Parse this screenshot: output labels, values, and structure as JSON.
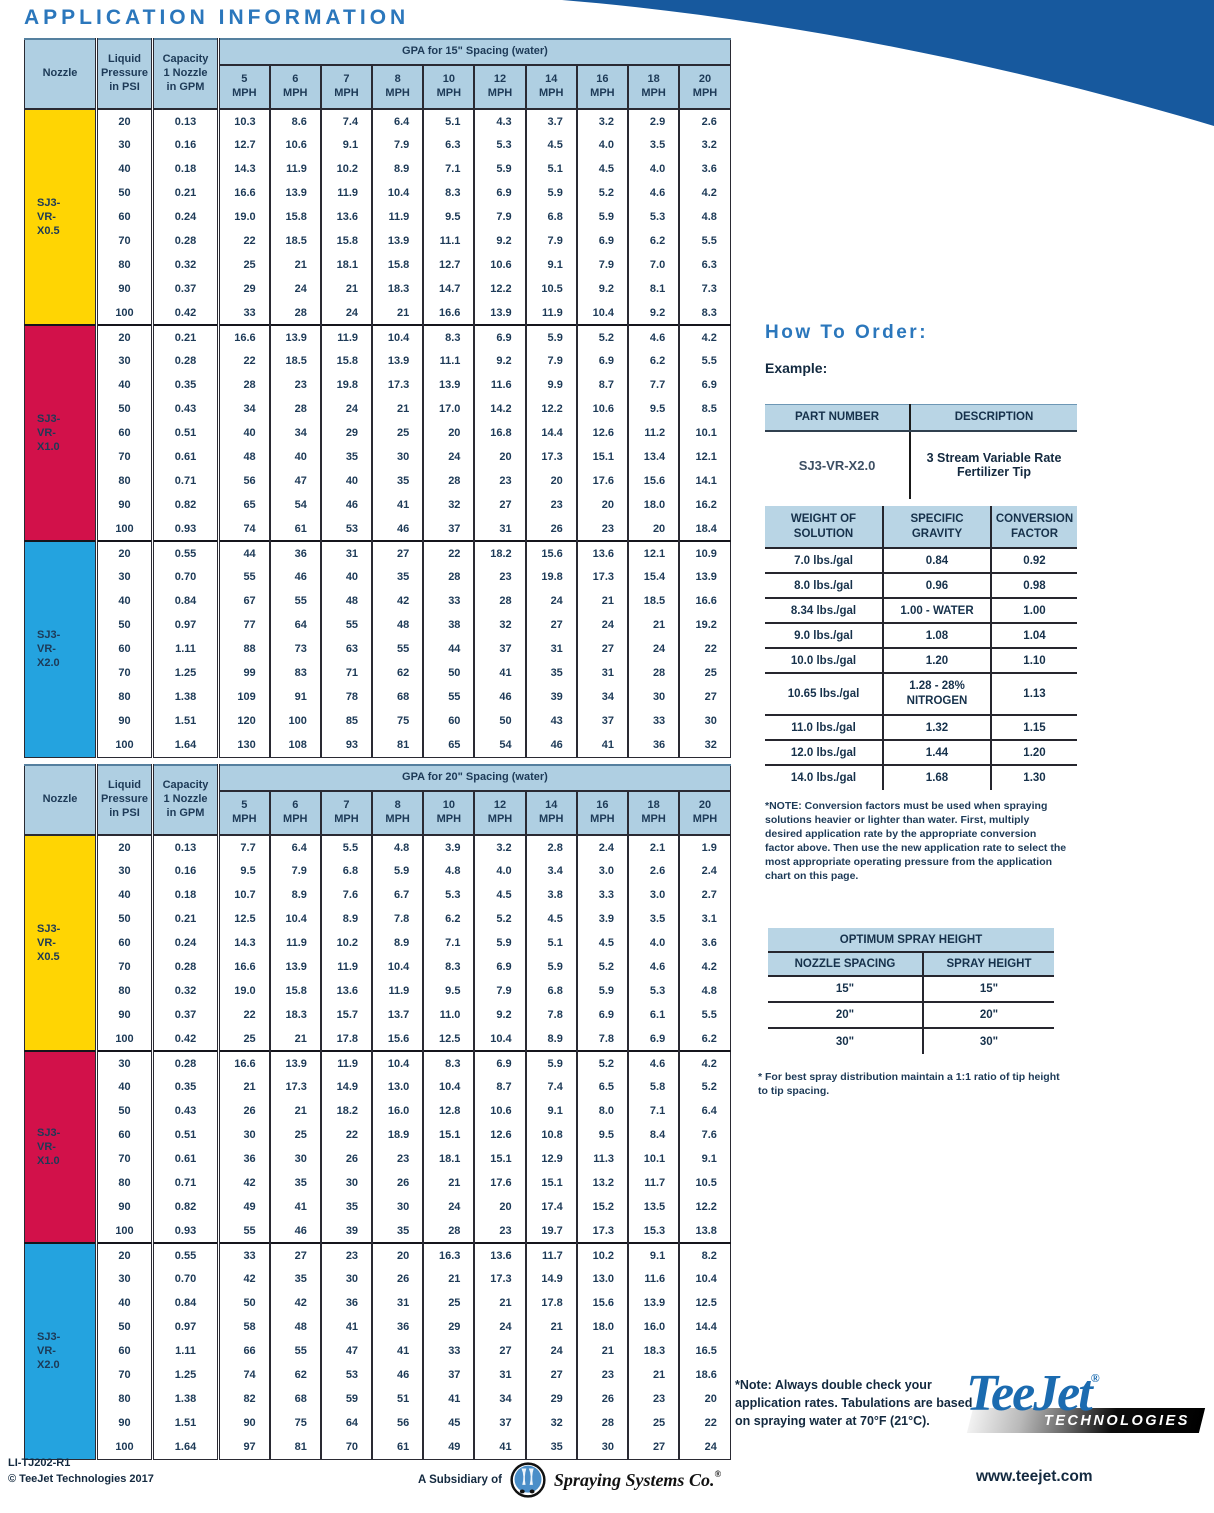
{
  "page": {
    "title": "APPLICATION INFORMATION"
  },
  "application_tables": [
    {
      "id": "15",
      "spacing_header": "GPA for 15\" Spacing (water)",
      "nozzle_header": "Nozzle",
      "pressure_header_lines": [
        "Liquid",
        "Pressure",
        "in PSI"
      ],
      "capacity_header_lines": [
        "Capacity",
        "1 Nozzle",
        "in GPM"
      ],
      "mph_values": [
        "5",
        "6",
        "7",
        "8",
        "10",
        "12",
        "14",
        "16",
        "18",
        "20"
      ],
      "mph_label": "MPH",
      "sections": [
        {
          "label_lines": [
            "SJ3-",
            "VR-",
            "X0.5"
          ],
          "color": "#FFD503",
          "rows": [
            [
              "20",
              "0.13",
              "10.3",
              "8.6",
              "7.4",
              "6.4",
              "5.1",
              "4.3",
              "3.7",
              "3.2",
              "2.9",
              "2.6"
            ],
            [
              "30",
              "0.16",
              "12.7",
              "10.6",
              "9.1",
              "7.9",
              "6.3",
              "5.3",
              "4.5",
              "4.0",
              "3.5",
              "3.2"
            ],
            [
              "40",
              "0.18",
              "14.3",
              "11.9",
              "10.2",
              "8.9",
              "7.1",
              "5.9",
              "5.1",
              "4.5",
              "4.0",
              "3.6"
            ],
            [
              "50",
              "0.21",
              "16.6",
              "13.9",
              "11.9",
              "10.4",
              "8.3",
              "6.9",
              "5.9",
              "5.2",
              "4.6",
              "4.2"
            ],
            [
              "60",
              "0.24",
              "19.0",
              "15.8",
              "13.6",
              "11.9",
              "9.5",
              "7.9",
              "6.8",
              "5.9",
              "5.3",
              "4.8"
            ],
            [
              "70",
              "0.28",
              "22",
              "18.5",
              "15.8",
              "13.9",
              "11.1",
              "9.2",
              "7.9",
              "6.9",
              "6.2",
              "5.5"
            ],
            [
              "80",
              "0.32",
              "25",
              "21",
              "18.1",
              "15.8",
              "12.7",
              "10.6",
              "9.1",
              "7.9",
              "7.0",
              "6.3"
            ],
            [
              "90",
              "0.37",
              "29",
              "24",
              "21",
              "18.3",
              "14.7",
              "12.2",
              "10.5",
              "9.2",
              "8.1",
              "7.3"
            ],
            [
              "100",
              "0.42",
              "33",
              "28",
              "24",
              "21",
              "16.6",
              "13.9",
              "11.9",
              "10.4",
              "9.2",
              "8.3"
            ]
          ]
        },
        {
          "label_lines": [
            "SJ3-",
            "VR-",
            "X1.0"
          ],
          "color": "#D2114A",
          "rows": [
            [
              "20",
              "0.21",
              "16.6",
              "13.9",
              "11.9",
              "10.4",
              "8.3",
              "6.9",
              "5.9",
              "5.2",
              "4.6",
              "4.2"
            ],
            [
              "30",
              "0.28",
              "22",
              "18.5",
              "15.8",
              "13.9",
              "11.1",
              "9.2",
              "7.9",
              "6.9",
              "6.2",
              "5.5"
            ],
            [
              "40",
              "0.35",
              "28",
              "23",
              "19.8",
              "17.3",
              "13.9",
              "11.6",
              "9.9",
              "8.7",
              "7.7",
              "6.9"
            ],
            [
              "50",
              "0.43",
              "34",
              "28",
              "24",
              "21",
              "17.0",
              "14.2",
              "12.2",
              "10.6",
              "9.5",
              "8.5"
            ],
            [
              "60",
              "0.51",
              "40",
              "34",
              "29",
              "25",
              "20",
              "16.8",
              "14.4",
              "12.6",
              "11.2",
              "10.1"
            ],
            [
              "70",
              "0.61",
              "48",
              "40",
              "35",
              "30",
              "24",
              "20",
              "17.3",
              "15.1",
              "13.4",
              "12.1"
            ],
            [
              "80",
              "0.71",
              "56",
              "47",
              "40",
              "35",
              "28",
              "23",
              "20",
              "17.6",
              "15.6",
              "14.1"
            ],
            [
              "90",
              "0.82",
              "65",
              "54",
              "46",
              "41",
              "32",
              "27",
              "23",
              "20",
              "18.0",
              "16.2"
            ],
            [
              "100",
              "0.93",
              "74",
              "61",
              "53",
              "46",
              "37",
              "31",
              "26",
              "23",
              "20",
              "18.4"
            ]
          ]
        },
        {
          "label_lines": [
            "SJ3-",
            "VR-",
            "X2.0"
          ],
          "color": "#24A3DF",
          "rows": [
            [
              "20",
              "0.55",
              "44",
              "36",
              "31",
              "27",
              "22",
              "18.2",
              "15.6",
              "13.6",
              "12.1",
              "10.9"
            ],
            [
              "30",
              "0.70",
              "55",
              "46",
              "40",
              "35",
              "28",
              "23",
              "19.8",
              "17.3",
              "15.4",
              "13.9"
            ],
            [
              "40",
              "0.84",
              "67",
              "55",
              "48",
              "42",
              "33",
              "28",
              "24",
              "21",
              "18.5",
              "16.6"
            ],
            [
              "50",
              "0.97",
              "77",
              "64",
              "55",
              "48",
              "38",
              "32",
              "27",
              "24",
              "21",
              "19.2"
            ],
            [
              "60",
              "1.11",
              "88",
              "73",
              "63",
              "55",
              "44",
              "37",
              "31",
              "27",
              "24",
              "22"
            ],
            [
              "70",
              "1.25",
              "99",
              "83",
              "71",
              "62",
              "50",
              "41",
              "35",
              "31",
              "28",
              "25"
            ],
            [
              "80",
              "1.38",
              "109",
              "91",
              "78",
              "68",
              "55",
              "46",
              "39",
              "34",
              "30",
              "27"
            ],
            [
              "90",
              "1.51",
              "120",
              "100",
              "85",
              "75",
              "60",
              "50",
              "43",
              "37",
              "33",
              "30"
            ],
            [
              "100",
              "1.64",
              "130",
              "108",
              "93",
              "81",
              "65",
              "54",
              "46",
              "41",
              "36",
              "32"
            ]
          ]
        }
      ]
    },
    {
      "id": "20",
      "spacing_header": "GPA for 20\" Spacing (water)",
      "nozzle_header": "Nozzle",
      "pressure_header_lines": [
        "Liquid",
        "Pressure",
        "in PSI"
      ],
      "capacity_header_lines": [
        "Capacity",
        "1 Nozzle",
        "in GPM"
      ],
      "mph_values": [
        "5",
        "6",
        "7",
        "8",
        "10",
        "12",
        "14",
        "16",
        "18",
        "20"
      ],
      "mph_label": "MPH",
      "sections": [
        {
          "label_lines": [
            "SJ3-",
            "VR-",
            "X0.5"
          ],
          "color": "#FFD503",
          "rows": [
            [
              "20",
              "0.13",
              "7.7",
              "6.4",
              "5.5",
              "4.8",
              "3.9",
              "3.2",
              "2.8",
              "2.4",
              "2.1",
              "1.9"
            ],
            [
              "30",
              "0.16",
              "9.5",
              "7.9",
              "6.8",
              "5.9",
              "4.8",
              "4.0",
              "3.4",
              "3.0",
              "2.6",
              "2.4"
            ],
            [
              "40",
              "0.18",
              "10.7",
              "8.9",
              "7.6",
              "6.7",
              "5.3",
              "4.5",
              "3.8",
              "3.3",
              "3.0",
              "2.7"
            ],
            [
              "50",
              "0.21",
              "12.5",
              "10.4",
              "8.9",
              "7.8",
              "6.2",
              "5.2",
              "4.5",
              "3.9",
              "3.5",
              "3.1"
            ],
            [
              "60",
              "0.24",
              "14.3",
              "11.9",
              "10.2",
              "8.9",
              "7.1",
              "5.9",
              "5.1",
              "4.5",
              "4.0",
              "3.6"
            ],
            [
              "70",
              "0.28",
              "16.6",
              "13.9",
              "11.9",
              "10.4",
              "8.3",
              "6.9",
              "5.9",
              "5.2",
              "4.6",
              "4.2"
            ],
            [
              "80",
              "0.32",
              "19.0",
              "15.8",
              "13.6",
              "11.9",
              "9.5",
              "7.9",
              "6.8",
              "5.9",
              "5.3",
              "4.8"
            ],
            [
              "90",
              "0.37",
              "22",
              "18.3",
              "15.7",
              "13.7",
              "11.0",
              "9.2",
              "7.8",
              "6.9",
              "6.1",
              "5.5"
            ],
            [
              "100",
              "0.42",
              "25",
              "21",
              "17.8",
              "15.6",
              "12.5",
              "10.4",
              "8.9",
              "7.8",
              "6.9",
              "6.2"
            ]
          ]
        },
        {
          "label_lines": [
            "SJ3-",
            "VR-",
            "X1.0"
          ],
          "color": "#D2114A",
          "rows": [
            [
              "30",
              "0.28",
              "16.6",
              "13.9",
              "11.9",
              "10.4",
              "8.3",
              "6.9",
              "5.9",
              "5.2",
              "4.6",
              "4.2"
            ],
            [
              "40",
              "0.35",
              "21",
              "17.3",
              "14.9",
              "13.0",
              "10.4",
              "8.7",
              "7.4",
              "6.5",
              "5.8",
              "5.2"
            ],
            [
              "50",
              "0.43",
              "26",
              "21",
              "18.2",
              "16.0",
              "12.8",
              "10.6",
              "9.1",
              "8.0",
              "7.1",
              "6.4"
            ],
            [
              "60",
              "0.51",
              "30",
              "25",
              "22",
              "18.9",
              "15.1",
              "12.6",
              "10.8",
              "9.5",
              "8.4",
              "7.6"
            ],
            [
              "70",
              "0.61",
              "36",
              "30",
              "26",
              "23",
              "18.1",
              "15.1",
              "12.9",
              "11.3",
              "10.1",
              "9.1"
            ],
            [
              "80",
              "0.71",
              "42",
              "35",
              "30",
              "26",
              "21",
              "17.6",
              "15.1",
              "13.2",
              "11.7",
              "10.5"
            ],
            [
              "90",
              "0.82",
              "49",
              "41",
              "35",
              "30",
              "24",
              "20",
              "17.4",
              "15.2",
              "13.5",
              "12.2"
            ],
            [
              "100",
              "0.93",
              "55",
              "46",
              "39",
              "35",
              "28",
              "23",
              "19.7",
              "17.3",
              "15.3",
              "13.8"
            ]
          ]
        },
        {
          "label_lines": [
            "SJ3-",
            "VR-",
            "X2.0"
          ],
          "color": "#24A3DF",
          "rows": [
            [
              "20",
              "0.55",
              "33",
              "27",
              "23",
              "20",
              "16.3",
              "13.6",
              "11.7",
              "10.2",
              "9.1",
              "8.2"
            ],
            [
              "30",
              "0.70",
              "42",
              "35",
              "30",
              "26",
              "21",
              "17.3",
              "14.9",
              "13.0",
              "11.6",
              "10.4"
            ],
            [
              "40",
              "0.84",
              "50",
              "42",
              "36",
              "31",
              "25",
              "21",
              "17.8",
              "15.6",
              "13.9",
              "12.5"
            ],
            [
              "50",
              "0.97",
              "58",
              "48",
              "41",
              "36",
              "29",
              "24",
              "21",
              "18.0",
              "16.0",
              "14.4"
            ],
            [
              "60",
              "1.11",
              "66",
              "55",
              "47",
              "41",
              "33",
              "27",
              "24",
              "21",
              "18.3",
              "16.5"
            ],
            [
              "70",
              "1.25",
              "74",
              "62",
              "53",
              "46",
              "37",
              "31",
              "27",
              "23",
              "21",
              "18.6"
            ],
            [
              "80",
              "1.38",
              "82",
              "68",
              "59",
              "51",
              "41",
              "34",
              "29",
              "26",
              "23",
              "20"
            ],
            [
              "90",
              "1.51",
              "90",
              "75",
              "64",
              "56",
              "45",
              "37",
              "32",
              "28",
              "25",
              "22"
            ],
            [
              "100",
              "1.64",
              "97",
              "81",
              "70",
              "61",
              "49",
              "41",
              "35",
              "30",
              "27",
              "24"
            ]
          ]
        }
      ]
    }
  ],
  "how_to_order": {
    "title": "How To Order:",
    "example_label": "Example:",
    "part_table": {
      "headers": [
        "PART NUMBER",
        "DESCRIPTION"
      ],
      "part_number": "SJ3-VR-X2.0",
      "description": "3 Stream Variable Rate Fertilizer Tip"
    },
    "conversion_table": {
      "headers": [
        [
          "WEIGHT OF",
          "SOLUTION"
        ],
        [
          "SPECIFIC",
          "GRAVITY"
        ],
        [
          "CONVERSION",
          "FACTOR"
        ]
      ],
      "rows": [
        [
          "7.0 lbs./gal",
          "0.84",
          "0.92"
        ],
        [
          "8.0 lbs./gal",
          "0.96",
          "0.98"
        ],
        [
          "8.34 lbs./gal",
          "1.00 - WATER",
          "1.00"
        ],
        [
          "9.0 lbs./gal",
          "1.08",
          "1.04"
        ],
        [
          "10.0 lbs./gal",
          "1.20",
          "1.10"
        ],
        [
          "10.65 lbs./gal",
          "1.28 - 28% NITROGEN",
          "1.13"
        ],
        [
          "11.0 lbs./gal",
          "1.32",
          "1.15"
        ],
        [
          "12.0 lbs./gal",
          "1.44",
          "1.20"
        ],
        [
          "14.0 lbs./gal",
          "1.68",
          "1.30"
        ]
      ]
    },
    "conversion_note": "*NOTE: Conversion factors must be used when spraying solutions heavier or lighter than water. First, multiply desired application rate by the appropriate conversion factor above. Then use the new application rate to select the most appropriate operating pressure from the application chart on this page.",
    "spray_height_table": {
      "title": "OPTIMUM SPRAY HEIGHT",
      "headers": [
        "NOZZLE SPACING",
        "SPRAY HEIGHT"
      ],
      "rows": [
        [
          "15\"",
          "15\""
        ],
        [
          "20\"",
          "20\""
        ],
        [
          "30\"",
          "30\""
        ]
      ]
    },
    "spray_height_footnote": "* For best spray distribution maintain a 1:1 ratio of tip height to tip spacing."
  },
  "footer": {
    "rates_note": "*Note: Always double check your application rates. Tabulations are based on spraying water at 70°F (21°C).",
    "doc_code": "LI-TJ202-R1",
    "copyright": "© TeeJet Technologies 2017",
    "subsidiary_text": "A Subsidiary of",
    "company": "Spraying Systems Co.",
    "brand": "TeeJet",
    "brand_sub": "TECHNOLOGIES",
    "website": "www.teejet.com"
  },
  "colors": {
    "swoosh": "#17599E",
    "title_blue": "#2B77BC",
    "header_bg": "#AFCFE2",
    "row_tint": "#D8E9F3",
    "nozzle_yellow": "#FFD503",
    "nozzle_red": "#D2114A",
    "nozzle_cyan": "#24A3DF"
  }
}
